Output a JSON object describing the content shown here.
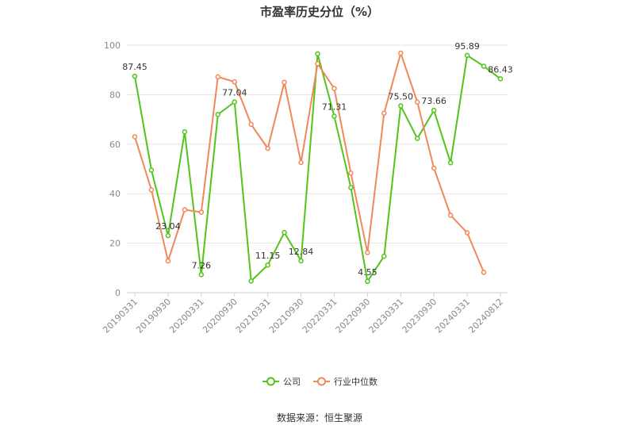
{
  "chart_data": {
    "type": "line",
    "title": "市盈率历史分位（%）",
    "source": "数据来源：恒生聚源",
    "ylim": [
      0,
      100
    ],
    "yticks": [
      "0",
      "20",
      "40",
      "60",
      "80",
      "100"
    ],
    "x_ticks": [
      "20190331",
      "20190930",
      "20200331",
      "20200930",
      "20210331",
      "20210930",
      "20220331",
      "20220930",
      "20230331",
      "20230930",
      "20240331",
      "20240812"
    ],
    "series": [
      {
        "name": "公司",
        "color": "#52c41a",
        "values": [
          87.45,
          49.5,
          23.04,
          65.0,
          7.26,
          72.0,
          77.04,
          4.7,
          11.15,
          24.3,
          12.84,
          96.5,
          71.31,
          42.5,
          4.55,
          14.7,
          75.5,
          62.3,
          73.66,
          52.5,
          95.89,
          91.5,
          86.43
        ]
      },
      {
        "name": "行业中位数",
        "color": "#f0885a",
        "values": [
          63.0,
          41.5,
          12.8,
          33.5,
          32.5,
          87.2,
          85.2,
          68.0,
          58.3,
          85.0,
          52.6,
          92.5,
          82.5,
          48.3,
          16.2,
          72.5,
          96.8,
          77.0,
          50.3,
          31.3,
          24.2,
          8.2
        ]
      }
    ],
    "data_labels": [
      {
        "series": 0,
        "index": 0,
        "text": "87.45"
      },
      {
        "series": 0,
        "index": 2,
        "text": "23.04"
      },
      {
        "series": 0,
        "index": 4,
        "text": "7.26"
      },
      {
        "series": 0,
        "index": 6,
        "text": "77.04"
      },
      {
        "series": 0,
        "index": 8,
        "text": "11.15"
      },
      {
        "series": 0,
        "index": 10,
        "text": "12.84"
      },
      {
        "series": 0,
        "index": 12,
        "text": "71.31"
      },
      {
        "series": 0,
        "index": 14,
        "text": "4.55"
      },
      {
        "series": 0,
        "index": 16,
        "text": "75.50"
      },
      {
        "series": 0,
        "index": 18,
        "text": "73.66"
      },
      {
        "series": 0,
        "index": 20,
        "text": "95.89"
      },
      {
        "series": 0,
        "index": 22,
        "text": "86.43"
      }
    ],
    "legend": [
      "公司",
      "行业中位数"
    ],
    "legend_position": "bottom"
  }
}
